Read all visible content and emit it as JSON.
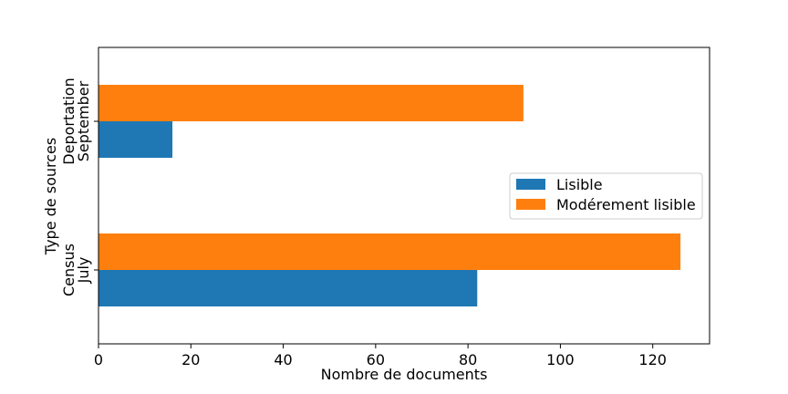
{
  "chart_data": {
    "type": "bar",
    "orientation": "horizontal",
    "categories": [
      [
        "Census",
        "July"
      ],
      [
        "Deportation",
        "September"
      ]
    ],
    "series": [
      {
        "name": "Lisible",
        "values": [
          82,
          16
        ],
        "color": "#1f77b4"
      },
      {
        "name": "Modérement lisible",
        "values": [
          126,
          92
        ],
        "color": "#ff7f0e"
      }
    ],
    "xlabel": "Nombre de documents",
    "ylabel": "Type de sources",
    "xlim": [
      0,
      132.3
    ],
    "xticks": [
      0,
      20,
      40,
      60,
      80,
      100,
      120
    ],
    "grid": false,
    "legend_position": "center-right"
  }
}
